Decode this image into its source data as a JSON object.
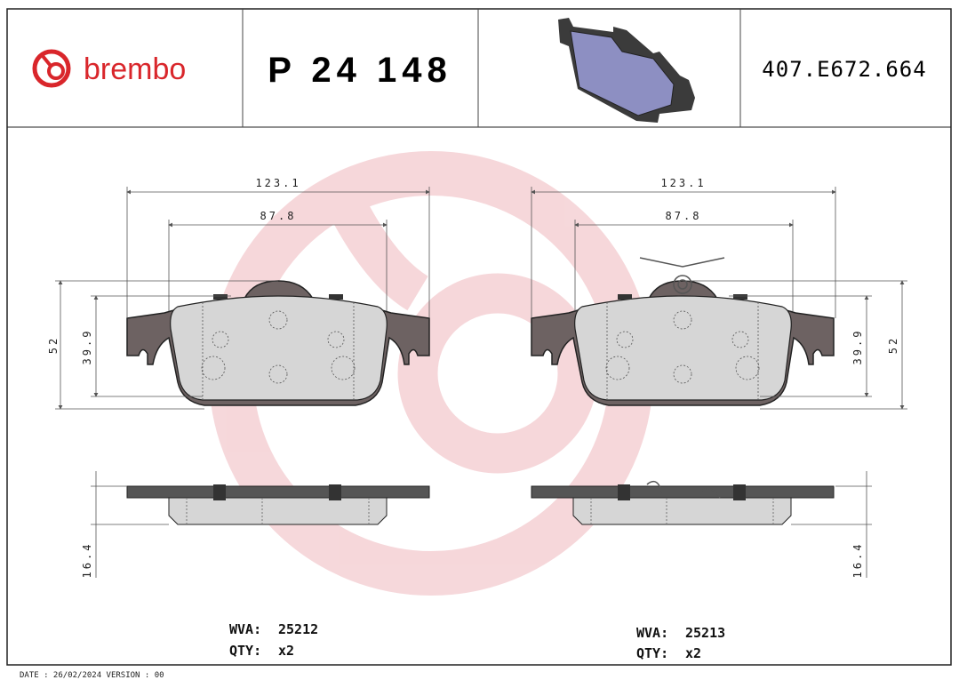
{
  "header": {
    "brand": "brembo",
    "part_number": "P 24 148",
    "code": "407.E672.664"
  },
  "views": [
    {
      "width_total": 123.1,
      "width_inner": 87.8,
      "height_total": 52,
      "height_inner": 39.9,
      "thickness": 16.4,
      "wva_label": "WVA:",
      "wva": 25212,
      "qty_label": "QTY:",
      "qty": "x2"
    },
    {
      "width_total": 123.1,
      "width_inner": 87.8,
      "height_total": 52,
      "height_inner": 39.9,
      "thickness": 16.4,
      "wva_label": "WVA:",
      "wva": 25213,
      "qty_label": "QTY:",
      "qty": "x2"
    }
  ],
  "footer": "DATE : 26/02/2024 VERSION : 00"
}
